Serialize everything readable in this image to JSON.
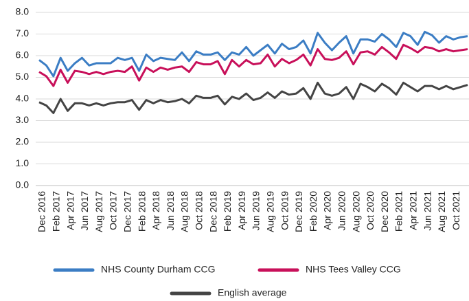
{
  "chart_data": {
    "type": "line",
    "categories": [
      "Dec 2016",
      null,
      "Feb 2017",
      null,
      "Apr 2017",
      null,
      "Jun 2017",
      null,
      "Aug 2017",
      null,
      "Oct 2017",
      null,
      "Dec 2017",
      null,
      "Feb 2018",
      null,
      "Apr 2018",
      null,
      "Jun 2018",
      null,
      "Aug 2018",
      null,
      "Oct 2018",
      null,
      "Dec 2018",
      null,
      "Feb 2019",
      null,
      "Apr 2019",
      null,
      "Jun 2019",
      null,
      "Aug 2019",
      null,
      "Oct 2019",
      null,
      "Dec 2019",
      null,
      "Feb 2020",
      null,
      "Apr 2020",
      null,
      "Jun 2020",
      null,
      "Aug 2020",
      null,
      "Oct 2020",
      null,
      "Dec 2020",
      null,
      "Feb 2021",
      null,
      "Apr 2021",
      null,
      "Jun 2021",
      null,
      "Aug 2021",
      null,
      "Oct 2021",
      null,
      null
    ],
    "series": [
      {
        "name": "NHS County Durham CCG",
        "color": "#3b7dc4",
        "values": [
          5.8,
          5.55,
          5.05,
          5.9,
          5.3,
          5.65,
          5.9,
          5.55,
          5.65,
          5.65,
          5.65,
          5.9,
          5.8,
          5.9,
          5.3,
          6.05,
          5.75,
          5.9,
          5.85,
          5.8,
          6.15,
          5.75,
          6.2,
          6.05,
          6.05,
          6.15,
          5.8,
          6.15,
          6.05,
          6.4,
          6.0,
          6.25,
          6.5,
          6.1,
          6.55,
          6.3,
          6.4,
          6.7,
          6.1,
          7.05,
          6.6,
          6.25,
          6.6,
          6.9,
          6.1,
          6.75,
          6.75,
          6.65,
          7.0,
          6.75,
          6.4,
          7.05,
          6.9,
          6.5,
          7.1,
          6.95,
          6.6,
          6.9,
          6.75,
          6.85,
          6.9
        ]
      },
      {
        "name": "NHS Tees Valley CCG",
        "color": "#c8105a",
        "values": [
          5.25,
          5.05,
          4.6,
          5.35,
          4.75,
          5.3,
          5.25,
          5.15,
          5.25,
          5.15,
          5.25,
          5.3,
          5.25,
          5.5,
          4.85,
          5.45,
          5.25,
          5.45,
          5.35,
          5.45,
          5.5,
          5.25,
          5.7,
          5.6,
          5.6,
          5.75,
          5.15,
          5.8,
          5.5,
          5.8,
          5.6,
          5.65,
          6.05,
          5.5,
          5.85,
          5.65,
          5.8,
          6.05,
          5.55,
          6.3,
          5.85,
          5.8,
          5.9,
          6.2,
          5.6,
          6.15,
          6.2,
          6.05,
          6.4,
          6.15,
          5.85,
          6.5,
          6.35,
          6.15,
          6.4,
          6.35,
          6.2,
          6.3,
          6.2,
          6.25,
          6.3
        ]
      },
      {
        "name": "English average",
        "color": "#444444",
        "values": [
          3.85,
          3.7,
          3.35,
          4.0,
          3.45,
          3.8,
          3.8,
          3.7,
          3.8,
          3.7,
          3.8,
          3.85,
          3.85,
          3.95,
          3.5,
          3.95,
          3.8,
          3.95,
          3.85,
          3.9,
          4.0,
          3.8,
          4.15,
          4.05,
          4.05,
          4.15,
          3.75,
          4.1,
          4.0,
          4.25,
          3.95,
          4.05,
          4.3,
          4.05,
          4.35,
          4.2,
          4.25,
          4.5,
          4.0,
          4.75,
          4.25,
          4.15,
          4.25,
          4.55,
          4.0,
          4.7,
          4.55,
          4.35,
          4.7,
          4.5,
          4.2,
          4.75,
          4.55,
          4.35,
          4.6,
          4.6,
          4.45,
          4.6,
          4.45,
          4.55,
          4.65
        ]
      }
    ],
    "ylim": [
      0,
      8
    ],
    "yticks": [
      {
        "value": 0,
        "label": "0.0"
      },
      {
        "value": 1,
        "label": "1.0"
      },
      {
        "value": 2,
        "label": "2.0"
      },
      {
        "value": 3,
        "label": "3.0"
      },
      {
        "value": 4,
        "label": "4.0"
      },
      {
        "value": 5,
        "label": "5.0"
      },
      {
        "value": 6,
        "label": "6.0"
      },
      {
        "value": 7,
        "label": "7.0"
      },
      {
        "value": 8,
        "label": "8.0"
      }
    ],
    "grid": true
  }
}
